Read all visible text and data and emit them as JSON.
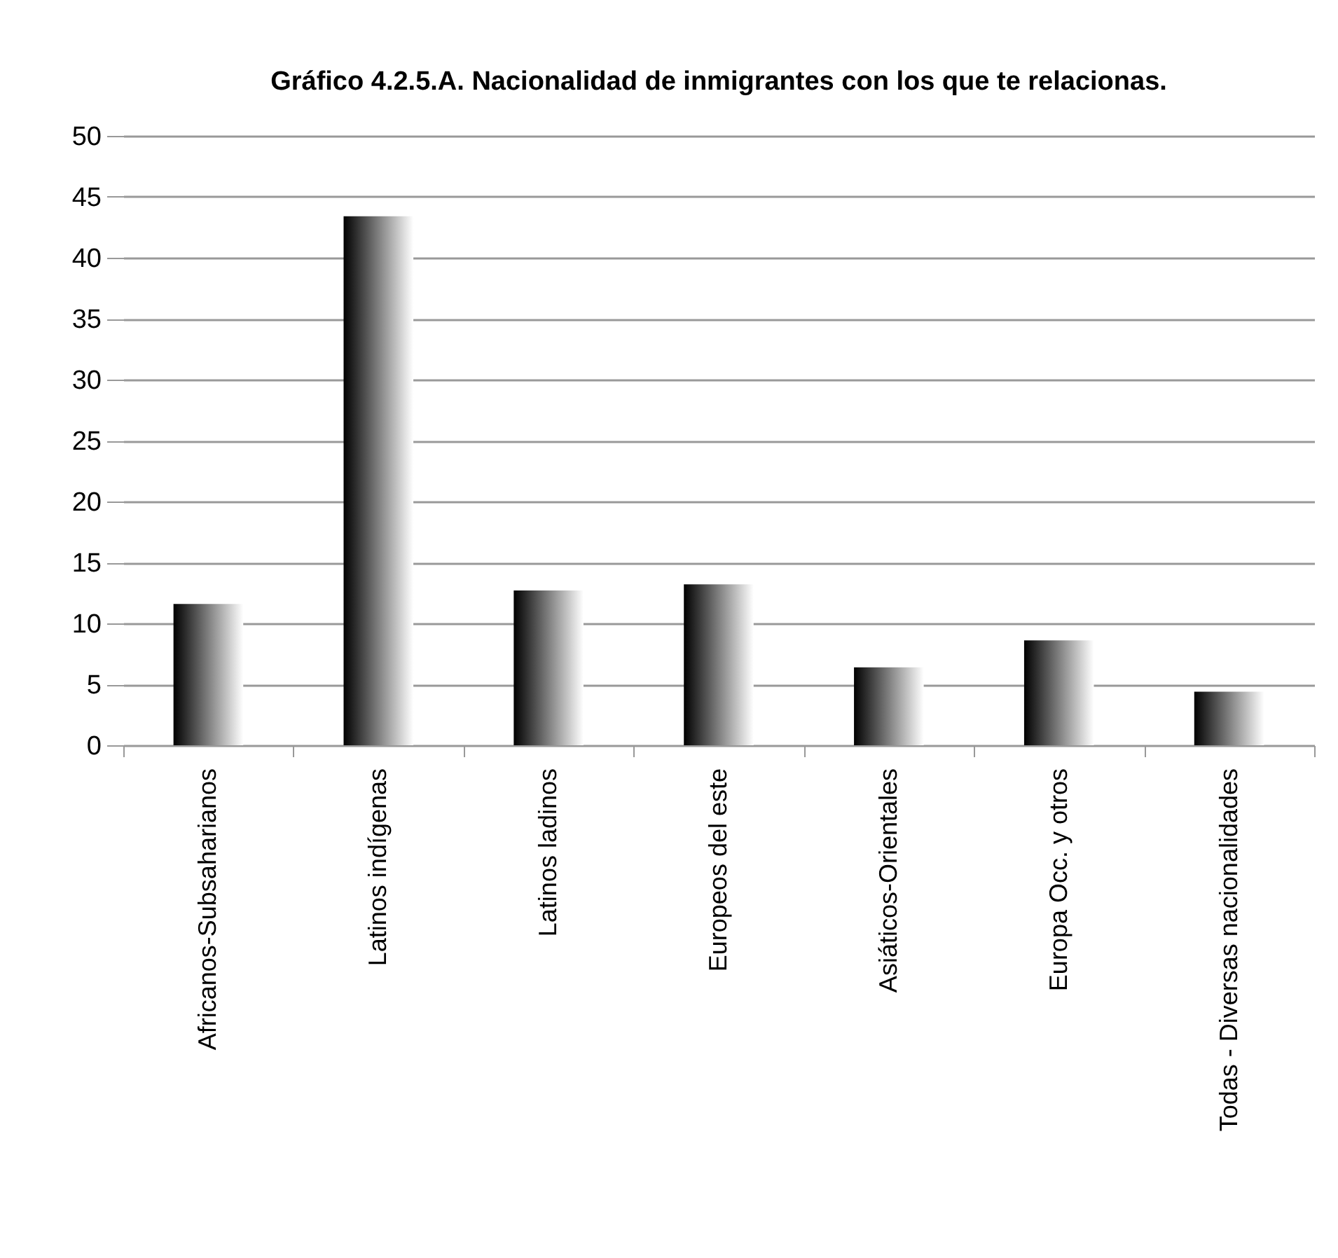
{
  "chart_data": {
    "type": "bar",
    "title": "Gráfico 4.2.5.A. Nacionalidad de inmigrantes con los que te relacionas.",
    "categories": [
      "Africanos-Subsaharianos",
      "Latinos indígenas",
      "Latinos ladinos",
      "Europeos del este",
      "Asiáticos-Orientales",
      "Europa Occ. y otros",
      "Todas - Diversas nacionalidades"
    ],
    "values": [
      11.6,
      43.4,
      12.7,
      13.2,
      6.4,
      8.6,
      4.4
    ],
    "color": "#000000",
    "ylim": [
      0,
      50
    ],
    "yticks": [
      0,
      5,
      10,
      15,
      20,
      25,
      30,
      35,
      40,
      45,
      50
    ],
    "grid": "y"
  }
}
